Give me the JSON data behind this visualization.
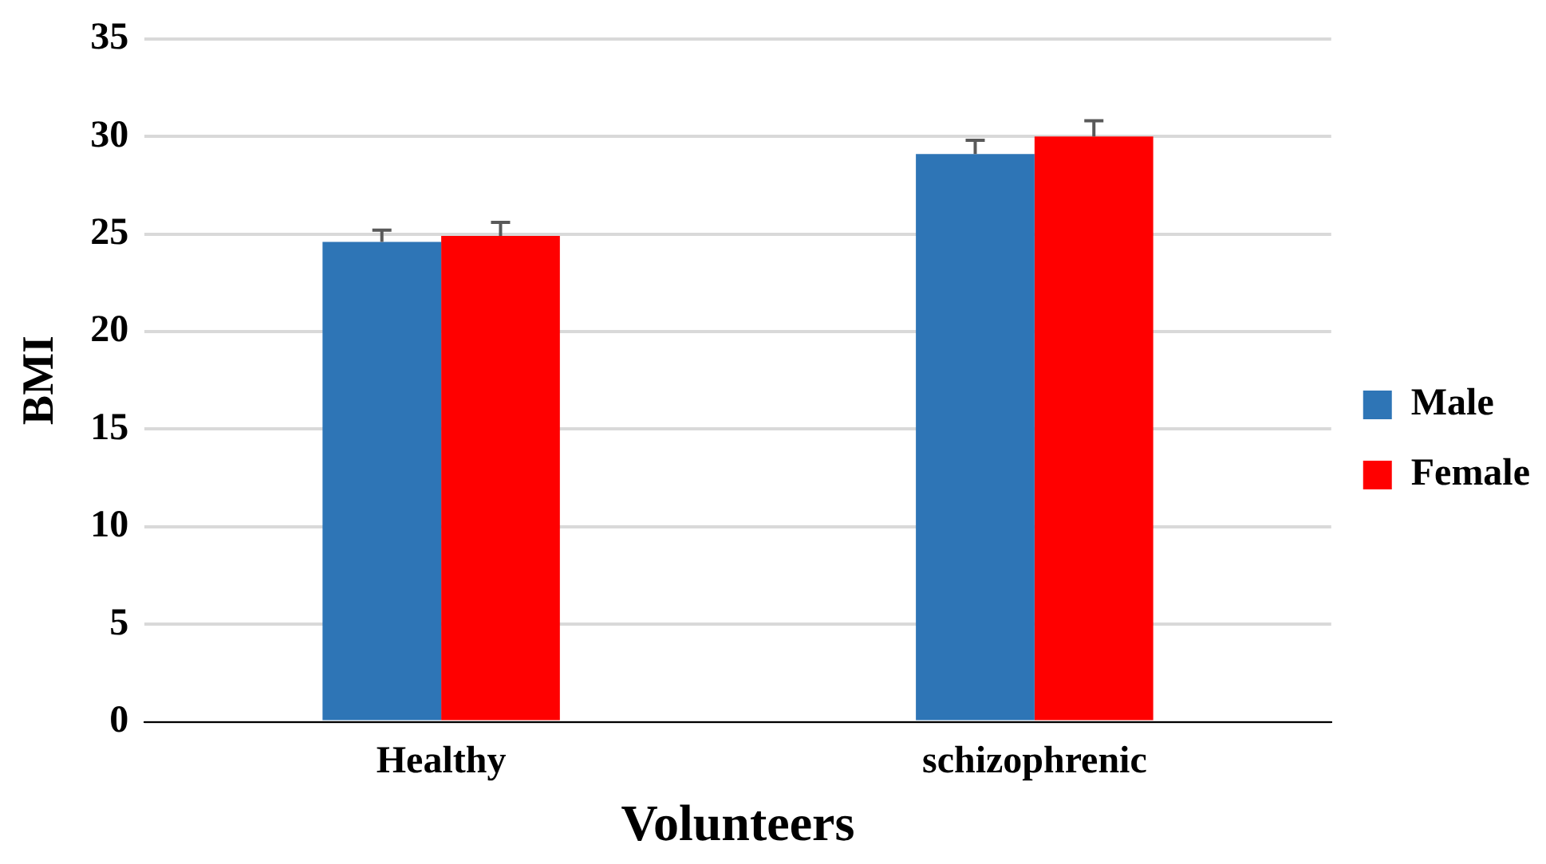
{
  "chart_data": {
    "type": "bar",
    "xlabel": "Volunteers",
    "ylabel": "BMI",
    "categories": [
      "Healthy",
      "schizophrenic"
    ],
    "series": [
      {
        "name": "Male",
        "color": "#2e75b6",
        "values": [
          24.6,
          29.1
        ],
        "errors": [
          [
            24.6,
            25.2
          ],
          [
            29.1,
            29.8
          ]
        ]
      },
      {
        "name": "Female",
        "color": "#ff0000",
        "values": [
          24.9,
          30.0
        ],
        "errors": [
          [
            24.9,
            25.6
          ],
          [
            30.0,
            30.8
          ]
        ]
      }
    ],
    "ylim": [
      0,
      35
    ],
    "yticks": [
      0,
      5,
      10,
      15,
      20,
      25,
      30,
      35
    ],
    "grid": "y",
    "legend": "right"
  }
}
